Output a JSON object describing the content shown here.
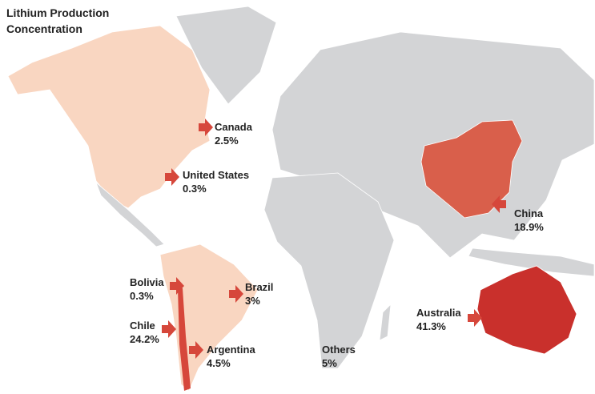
{
  "title": "Lithium Production Concentration",
  "countries": [
    {
      "name": "Canada",
      "share": "2.5%"
    },
    {
      "name": "United States",
      "share": "0.3%"
    },
    {
      "name": "China",
      "share": "18.9%"
    },
    {
      "name": "Bolivia",
      "share": "0.3%"
    },
    {
      "name": "Brazil",
      "share": "3%"
    },
    {
      "name": "Chile",
      "share": "24.2%"
    },
    {
      "name": "Argentina",
      "share": "4.5%"
    },
    {
      "name": "Australia",
      "share": "41.3%"
    },
    {
      "name": "Others",
      "share": "5%"
    }
  ]
}
